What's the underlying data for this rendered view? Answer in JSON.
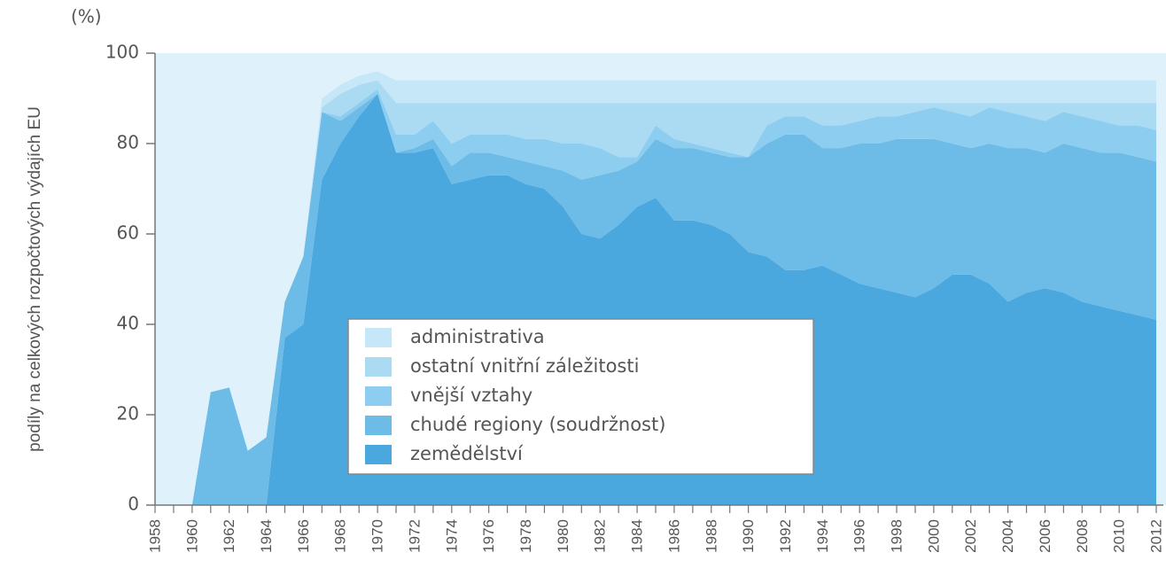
{
  "chart_data": {
    "type": "stacked_area",
    "y_unit": "(%)",
    "y_label": "podíly na celkových rozpočtových výdajích EU",
    "categories": [
      "1958",
      null,
      "1960",
      null,
      "1962",
      null,
      "1964",
      null,
      "1966",
      null,
      "1968",
      null,
      "1970",
      null,
      "1972",
      null,
      "1974",
      null,
      "1976",
      null,
      "1978",
      null,
      "1980",
      null,
      "1982",
      null,
      "1984",
      null,
      "1986",
      null,
      "1988",
      null,
      "1990",
      null,
      "1992",
      null,
      "1994",
      null,
      "1996",
      null,
      "1998",
      null,
      "2000",
      null,
      "2002",
      null,
      "2004",
      null,
      "2006",
      null,
      "2008",
      null,
      "2010",
      null,
      "2012"
    ],
    "ylim": [
      0,
      100
    ],
    "yticks": [
      0,
      20,
      40,
      60,
      80,
      100
    ],
    "background": "#dff2fb",
    "series": [
      {
        "name": "zemědělství",
        "color": "#4aa8df",
        "values": [
          0,
          0,
          0,
          0,
          0,
          0,
          0,
          37,
          40,
          72,
          80,
          86,
          91,
          78,
          78,
          79,
          71,
          72,
          73,
          73,
          71,
          70,
          66,
          60,
          59,
          62,
          66,
          68,
          63,
          63,
          62,
          60,
          56,
          55,
          52,
          52,
          53,
          51,
          49,
          48,
          47,
          46,
          48,
          51,
          51,
          49,
          45,
          47,
          48,
          47,
          45,
          44,
          43,
          42,
          41
        ]
      },
      {
        "name": "chudé regiony (soudržnost)",
        "color": "#6dbce8",
        "values": [
          0,
          0,
          0,
          25,
          26,
          12,
          15,
          8,
          15,
          15,
          5,
          2,
          0,
          0,
          1,
          2,
          4,
          6,
          5,
          4,
          5,
          5,
          8,
          12,
          14,
          12,
          10,
          13,
          16,
          16,
          16,
          17,
          21,
          25,
          30,
          30,
          26,
          28,
          31,
          32,
          34,
          35,
          33,
          29,
          28,
          31,
          34,
          32,
          30,
          33,
          34,
          34,
          35,
          35,
          35
        ]
      },
      {
        "name": "vnější vztahy",
        "color": "#8dcdef",
        "values": [
          0,
          0,
          0,
          0,
          0,
          0,
          0,
          0,
          0,
          0,
          1,
          1,
          1,
          4,
          3,
          4,
          5,
          4,
          4,
          5,
          5,
          6,
          6,
          8,
          6,
          3,
          1,
          3,
          2,
          1,
          1,
          1,
          0,
          4,
          4,
          4,
          5,
          5,
          5,
          6,
          5,
          6,
          7,
          7,
          7,
          8,
          8,
          7,
          7,
          7,
          7,
          7,
          6,
          7,
          7
        ]
      },
      {
        "name": "ostatní vnitřní záležitosti",
        "color": "#abdbf3",
        "values": [
          0,
          0,
          0,
          0,
          0,
          0,
          0,
          0,
          0,
          1,
          5,
          4,
          2,
          7,
          7,
          4,
          9,
          7,
          7,
          7,
          8,
          8,
          9,
          9,
          10,
          12,
          12,
          5,
          8,
          9,
          10,
          11,
          12,
          5,
          3,
          3,
          5,
          5,
          4,
          3,
          3,
          2,
          1,
          2,
          3,
          1,
          2,
          3,
          4,
          2,
          3,
          4,
          5,
          5,
          6
        ]
      },
      {
        "name": "administrativa",
        "color": "#c6e7f7",
        "values": [
          0,
          0,
          0,
          0,
          0,
          0,
          0,
          0,
          0,
          2,
          2,
          2,
          2,
          5,
          5,
          5,
          5,
          5,
          5,
          5,
          5,
          5,
          5,
          5,
          5,
          5,
          5,
          5,
          5,
          5,
          5,
          5,
          5,
          5,
          5,
          5,
          5,
          5,
          5,
          5,
          5,
          5,
          5,
          5,
          5,
          5,
          5,
          5,
          5,
          5,
          5,
          5,
          5,
          5,
          5
        ]
      }
    ]
  }
}
